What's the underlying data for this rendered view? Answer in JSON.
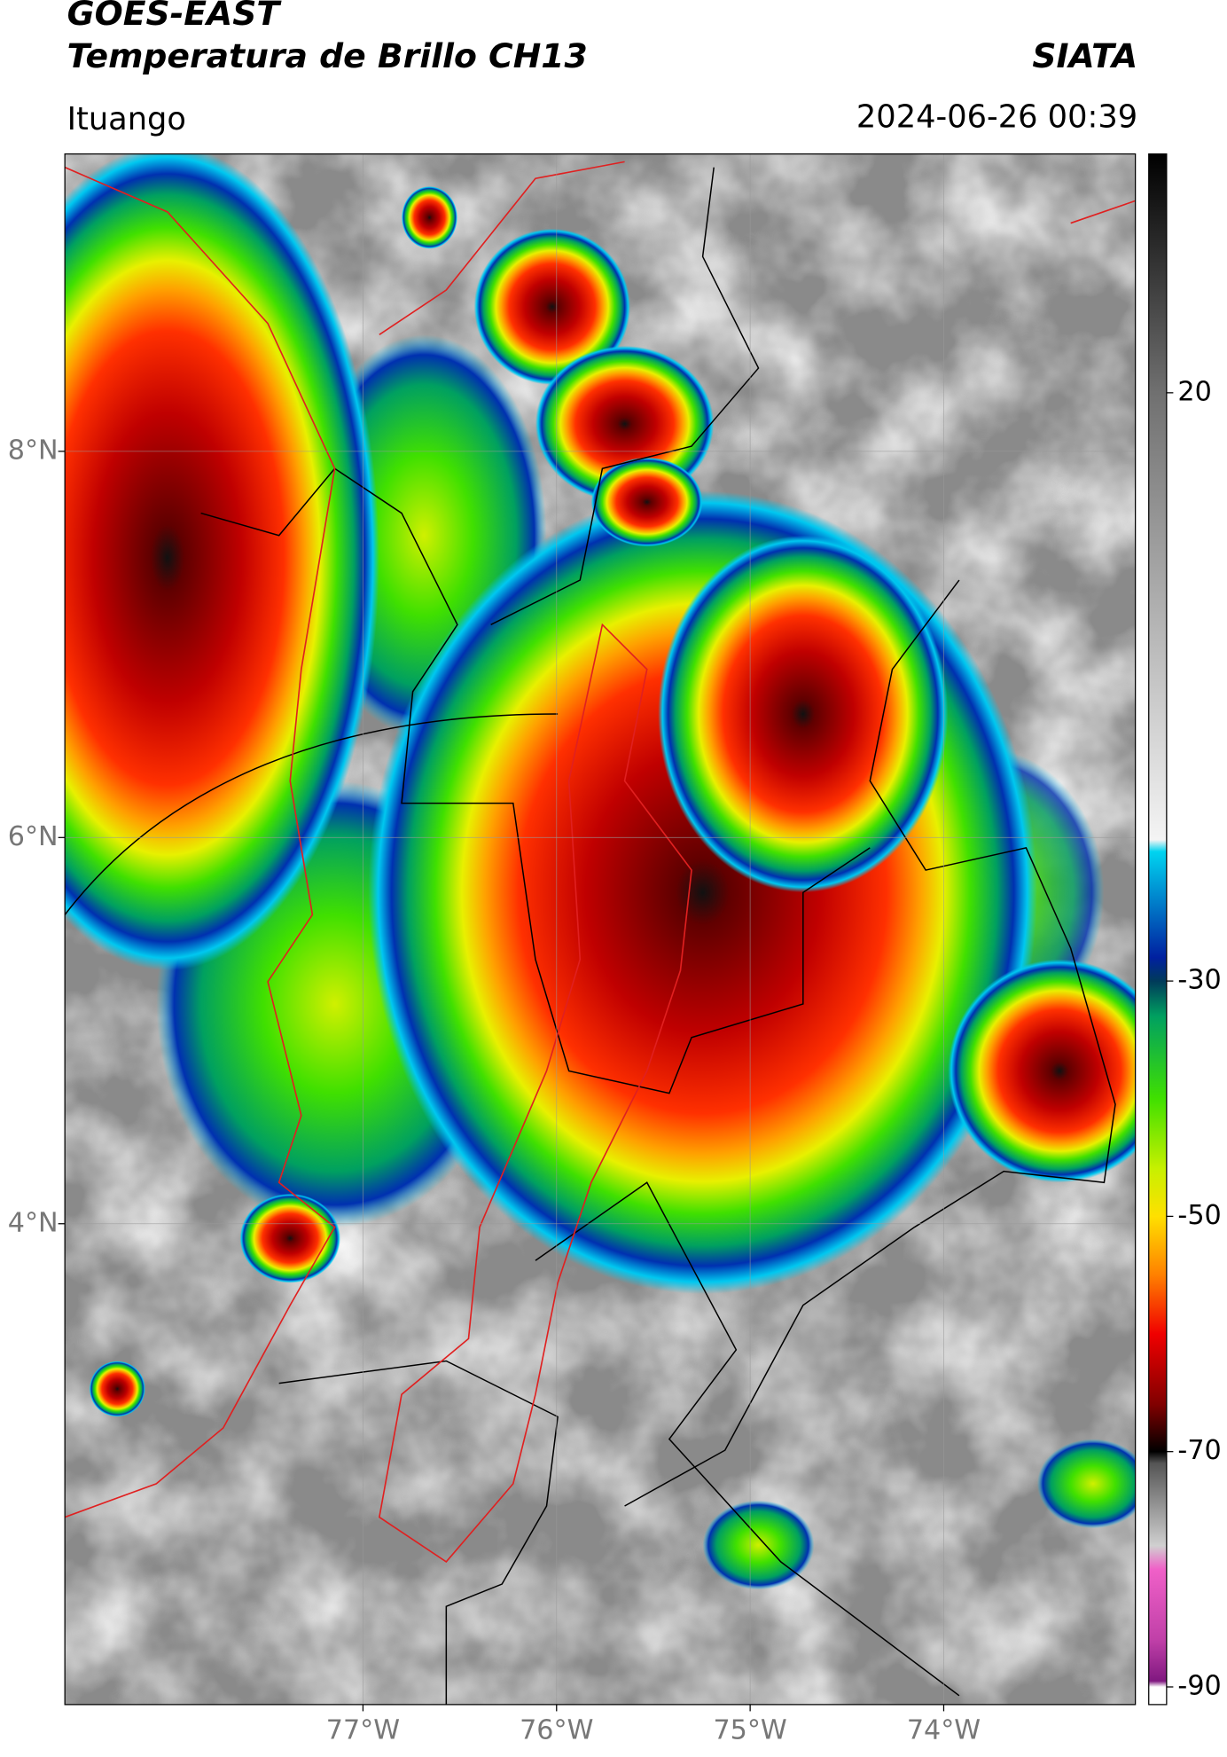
{
  "header": {
    "title": "GOES-EAST",
    "subtitle": "Temperatura de Brillo CH13",
    "source": "SIATA",
    "location": "Ituango",
    "datetime": "2024-06-26 00:39"
  },
  "map": {
    "xlim": [
      -78.54,
      -73.01
    ],
    "ylim": [
      1.51,
      9.54
    ],
    "xticks": [
      {
        "value": -77,
        "label": "77°W"
      },
      {
        "value": -76,
        "label": "76°W"
      },
      {
        "value": -75,
        "label": "75°W"
      },
      {
        "value": -74,
        "label": "74°W"
      }
    ],
    "yticks": [
      {
        "value": 8,
        "label": "8°N"
      },
      {
        "value": 6,
        "label": "6°N"
      },
      {
        "value": 4,
        "label": "4°N"
      }
    ],
    "grid": true
  },
  "colorbar": {
    "lim": [
      -91.5,
      40.3
    ],
    "ticks": [
      20,
      -30,
      -50,
      -70,
      -90
    ],
    "colormap": [
      {
        "value": 40.3,
        "color": "#000000"
      },
      {
        "value": 20,
        "color": "#707070"
      },
      {
        "value": -18,
        "color": "#f4f4f4"
      },
      {
        "value": -19,
        "color": "#00d4f0"
      },
      {
        "value": -28,
        "color": "#0020a0"
      },
      {
        "value": -30,
        "color": "#003a5a"
      },
      {
        "value": -33,
        "color": "#00a060"
      },
      {
        "value": -40,
        "color": "#40e000"
      },
      {
        "value": -46,
        "color": "#c8f000"
      },
      {
        "value": -50,
        "color": "#ffe000"
      },
      {
        "value": -55,
        "color": "#ff8000"
      },
      {
        "value": -60,
        "color": "#f00000"
      },
      {
        "value": -66,
        "color": "#800000"
      },
      {
        "value": -70,
        "color": "#000000"
      },
      {
        "value": -71,
        "color": "#555555"
      },
      {
        "value": -78,
        "color": "#d0d0d0"
      },
      {
        "value": -80,
        "color": "#f060c8"
      },
      {
        "value": -86,
        "color": "#c040a8"
      },
      {
        "value": -89.5,
        "color": "#801880"
      },
      {
        "value": -90,
        "color": "#ffffff"
      },
      {
        "value": -91.5,
        "color": "#ffffff"
      }
    ]
  }
}
